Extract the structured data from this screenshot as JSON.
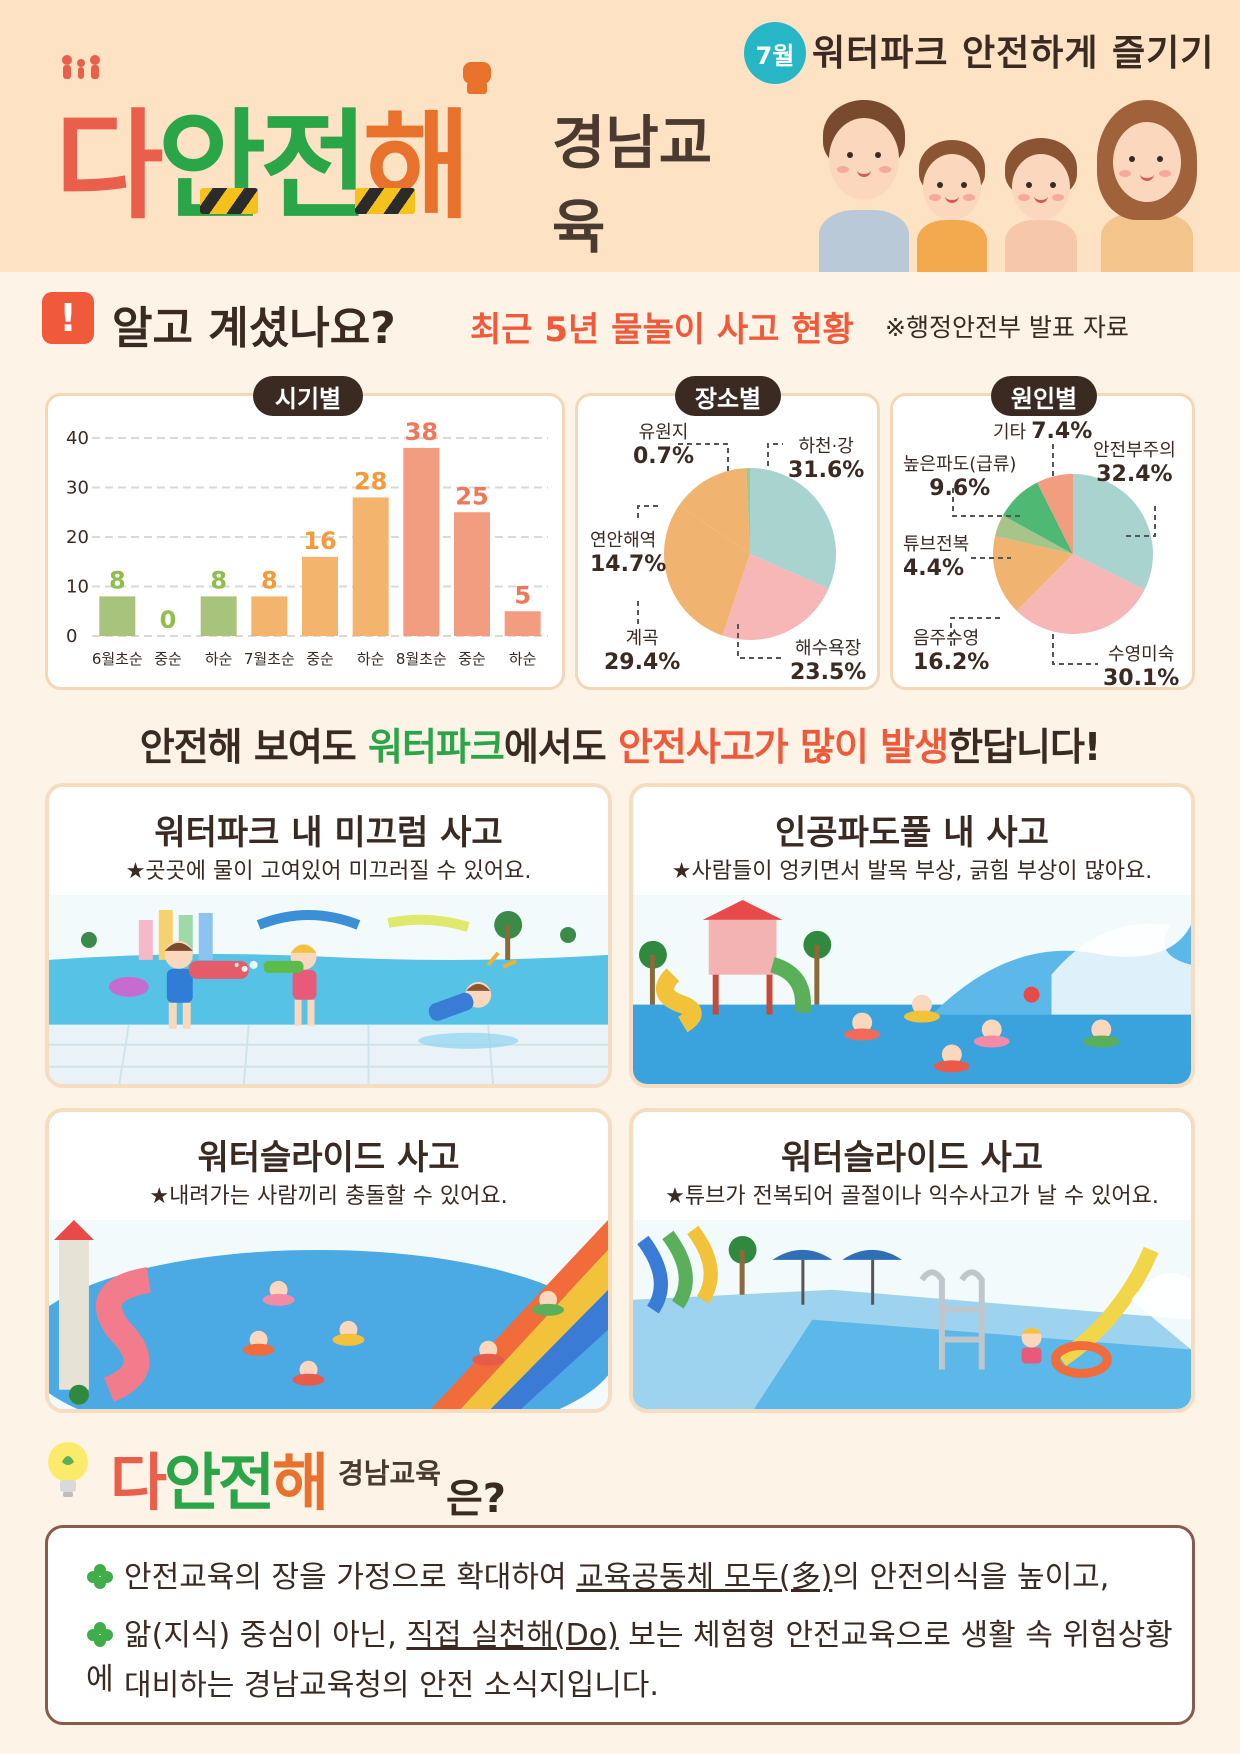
{
  "header": {
    "month": "7월",
    "title": "워터파크 안전하게 즐기기",
    "logo": [
      "다",
      "안",
      "전",
      "해"
    ],
    "logo_sub": "경남교육"
  },
  "stats": {
    "heading": "알고 계셨나요?",
    "subheading": "최근 5년 물놀이 사고 현황",
    "source": "※행정안전부 발표 자료"
  },
  "chart_data": [
    {
      "type": "bar",
      "title": "시기별",
      "categories": [
        "6월초순",
        "중순",
        "하순",
        "7월초순",
        "중순",
        "하순",
        "8월초순",
        "중순",
        "하순"
      ],
      "values": [
        8,
        0,
        8,
        8,
        16,
        28,
        38,
        25,
        5
      ],
      "ylim": [
        0,
        40
      ],
      "yticks": [
        "0",
        "10",
        "20",
        "30",
        "40"
      ],
      "colors": [
        "#a8c47c",
        "#a8c47c",
        "#a8c47c",
        "#f3b46e",
        "#f3b46e",
        "#f3b46e",
        "#f29c80",
        "#f29c80",
        "#f29c80"
      ],
      "label_colors": [
        "#8fbd4e",
        "#8fbd4e",
        "#8fbd4e",
        "#f39b3a",
        "#f39b3a",
        "#f39b3a",
        "#f0785a",
        "#f0785a",
        "#f0785a"
      ],
      "grid": true
    },
    {
      "type": "pie",
      "title": "장소별",
      "labels": [
        "하천·강",
        "해수욕장",
        "계곡",
        "연안해역",
        "유원지"
      ],
      "values": [
        31.6,
        23.5,
        29.4,
        14.7,
        0.7
      ],
      "value_labels": [
        "31.6%",
        "23.5%",
        "29.4%",
        "14.7%",
        "0.7%"
      ],
      "colors": [
        "#a9d3cf",
        "#f7b7b7",
        "#f1b370",
        "#f1b370",
        "#a7c48a"
      ]
    },
    {
      "type": "pie",
      "title": "원인별",
      "labels": [
        "안전부주의",
        "수영미숙",
        "음주수영",
        "튜브전복",
        "높은파도(급류)",
        "기타"
      ],
      "values": [
        32.4,
        30.1,
        16.2,
        4.4,
        9.6,
        7.4
      ],
      "value_labels": [
        "32.4%",
        "30.1%",
        "16.2%",
        "4.4%",
        "9.6%",
        "7.4%"
      ],
      "colors": [
        "#a9d3cf",
        "#f7b7b7",
        "#f1b370",
        "#a7c48a",
        "#4fb873",
        "#f29c80"
      ]
    }
  ],
  "tagline": {
    "part1": "안전해 보여도 ",
    "part2": "워터파크",
    "part3": "에서도 ",
    "part4": "안전사고가 많이 발생",
    "part5": "한답니다!"
  },
  "cards": [
    {
      "title": "워터파크 내 미끄럼 사고",
      "desc": "★곳곳에 물이 고여있어 미끄러질 수 있어요."
    },
    {
      "title": "인공파도풀 내 사고",
      "desc": "★사람들이 엉키면서 발목 부상, 긁힘 부상이 많아요."
    },
    {
      "title": "워터슬라이드 사고",
      "desc": "★내려가는 사람끼리 충돌할 수 있어요."
    },
    {
      "title": "워터슬라이드 사고",
      "desc": "★튜브가 전복되어 골절이나 익수사고가 날 수 있어요."
    }
  ],
  "about": {
    "logo": [
      "다",
      "안",
      "전",
      "해"
    ],
    "logo_sub": "경남교육",
    "suffix": "은?",
    "line1_a": "안전교육의 장을 가정으로 확대하여 ",
    "line1_b": "교육공동체 모두(多)",
    "line1_c": "의 안전의식을 높이고,",
    "line2_a": "앎(지식) 중심이 아닌, ",
    "line2_b": "직접 실천해(Do)",
    "line2_c": " 보는 체험형 안전교육으로 생활 속 위험상황에",
    "line3": "대비하는 경남교육청의 안전 소식지입니다."
  }
}
